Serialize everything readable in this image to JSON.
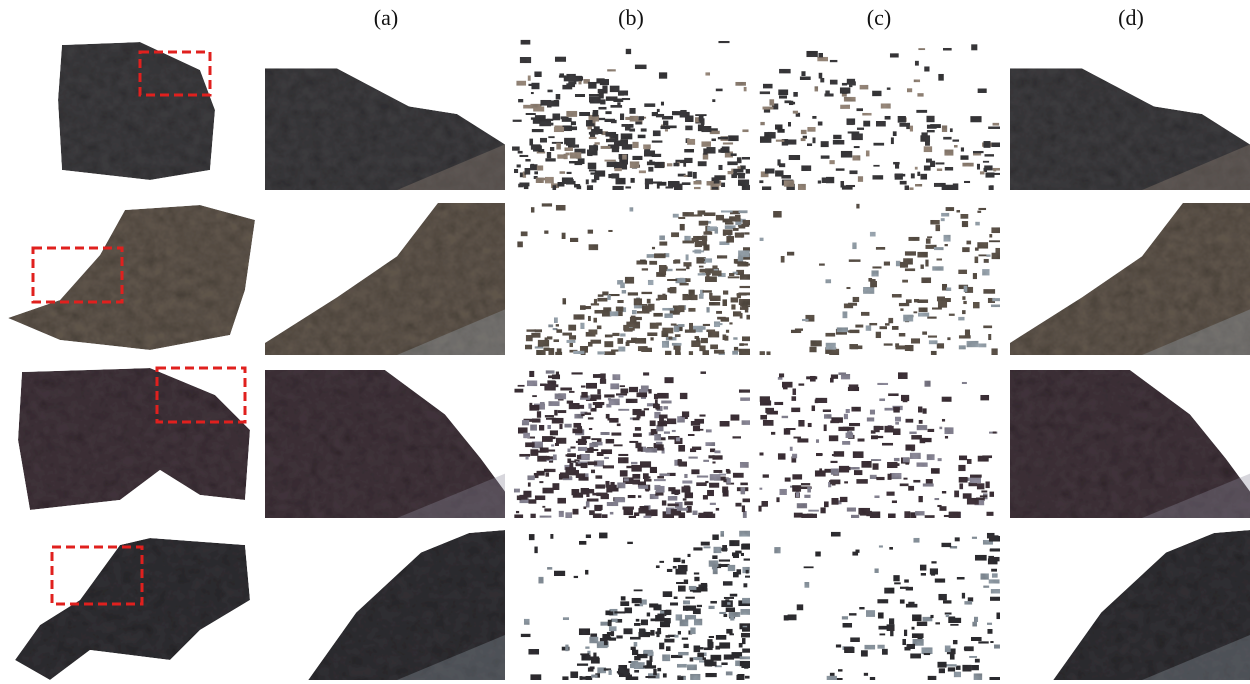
{
  "column_labels": [
    "(a)",
    "(b)",
    "(c)",
    "(d)"
  ]
}
